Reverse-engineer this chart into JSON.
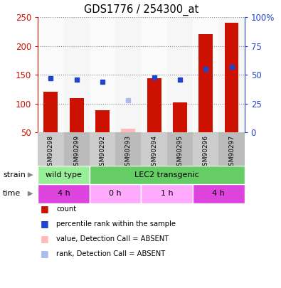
{
  "title": "GDS1776 / 254300_at",
  "samples": [
    "GSM90298",
    "GSM90299",
    "GSM90292",
    "GSM90293",
    "GSM90294",
    "GSM90295",
    "GSM90296",
    "GSM90297"
  ],
  "counts": [
    121,
    110,
    89,
    57,
    144,
    102,
    221,
    241
  ],
  "ranks_pct": [
    47,
    46,
    44,
    null,
    48,
    46,
    55,
    57
  ],
  "absent_counts": [
    null,
    null,
    null,
    57,
    null,
    null,
    null,
    null
  ],
  "absent_ranks_pct": [
    null,
    null,
    null,
    28,
    null,
    null,
    null,
    null
  ],
  "absent_flags": [
    false,
    false,
    false,
    true,
    false,
    false,
    false,
    false
  ],
  "ylim_left": [
    50,
    250
  ],
  "ylim_right": [
    0,
    100
  ],
  "yticks_left": [
    50,
    100,
    150,
    200,
    250
  ],
  "yticks_right": [
    0,
    25,
    50,
    75,
    100
  ],
  "yticklabels_right": [
    "0",
    "25",
    "50",
    "75",
    "100%"
  ],
  "bar_color": "#cc1100",
  "rank_color": "#2244cc",
  "absent_bar_color": "#ffbbbb",
  "absent_rank_color": "#aabbee",
  "strain_groups": [
    {
      "label": "wild type",
      "start": 0,
      "end": 2,
      "color": "#99ee99"
    },
    {
      "label": "LEC2 transgenic",
      "start": 2,
      "end": 8,
      "color": "#66cc66"
    }
  ],
  "time_groups": [
    {
      "label": "4 h",
      "start": 0,
      "end": 2,
      "color": "#dd44dd"
    },
    {
      "label": "0 h",
      "start": 2,
      "end": 4,
      "color": "#ffaaff"
    },
    {
      "label": "1 h",
      "start": 4,
      "end": 6,
      "color": "#ffaaff"
    },
    {
      "label": "4 h",
      "start": 6,
      "end": 8,
      "color": "#dd44dd"
    }
  ],
  "legend_items": [
    {
      "label": "count",
      "color": "#cc1100"
    },
    {
      "label": "percentile rank within the sample",
      "color": "#2244cc"
    },
    {
      "label": "value, Detection Call = ABSENT",
      "color": "#ffbbbb"
    },
    {
      "label": "rank, Detection Call = ABSENT",
      "color": "#aabbee"
    }
  ],
  "plot_bg": "#ffffff",
  "label_area_bg": "#cccccc",
  "grid_linestyle": "dotted",
  "grid_color": "#888888"
}
